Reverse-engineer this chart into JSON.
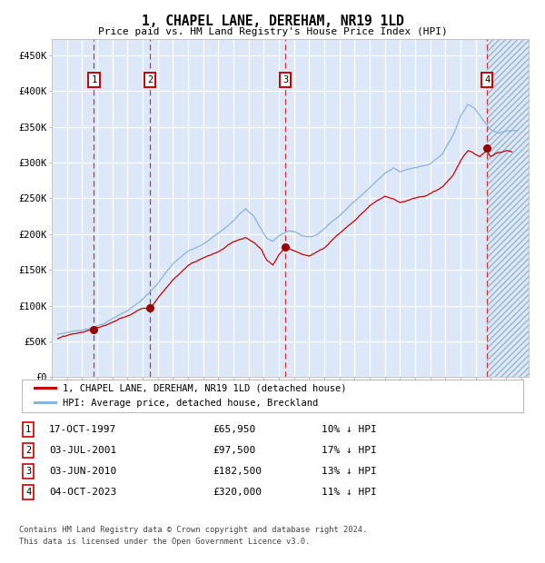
{
  "title": "1, CHAPEL LANE, DEREHAM, NR19 1LD",
  "subtitle": "Price paid vs. HM Land Registry's House Price Index (HPI)",
  "background_color": "#ffffff",
  "plot_bg_color": "#dce8f8",
  "ylabel_vals": [
    0,
    50000,
    100000,
    150000,
    200000,
    250000,
    300000,
    350000,
    400000,
    450000
  ],
  "ylabel_labels": [
    "£0",
    "£50K",
    "£100K",
    "£150K",
    "£200K",
    "£250K",
    "£300K",
    "£350K",
    "£400K",
    "£450K"
  ],
  "ylim": [
    0,
    472000
  ],
  "xlim_start": 1995.0,
  "xlim_end": 2026.5,
  "grid_color": "#ffffff",
  "hpi_line_color": "#8ab4d8",
  "price_line_color": "#cc0000",
  "sale_marker_color": "#990000",
  "dashed_line_color": "#cc2222",
  "last_sale_year": 2023.75,
  "sales": [
    {
      "num": 1,
      "date_str": "17-OCT-1997",
      "year": 1997.79,
      "price": 65950
    },
    {
      "num": 2,
      "date_str": "03-JUL-2001",
      "year": 2001.5,
      "price": 97500
    },
    {
      "num": 3,
      "date_str": "03-JUN-2010",
      "year": 2010.42,
      "price": 182500
    },
    {
      "num": 4,
      "date_str": "04-OCT-2023",
      "year": 2023.75,
      "price": 320000
    }
  ],
  "legend_label_price": "1, CHAPEL LANE, DEREHAM, NR19 1LD (detached house)",
  "legend_label_hpi": "HPI: Average price, detached house, Breckland",
  "footer1": "Contains HM Land Registry data © Crown copyright and database right 2024.",
  "footer2": "This data is licensed under the Open Government Licence v3.0.",
  "table_rows": [
    {
      "num": 1,
      "date": "17-OCT-1997",
      "price": "£65,950",
      "pct": "10% ↓ HPI"
    },
    {
      "num": 2,
      "date": "03-JUL-2001",
      "price": "£97,500",
      "pct": "17% ↓ HPI"
    },
    {
      "num": 3,
      "date": "03-JUN-2010",
      "price": "£182,500",
      "pct": "13% ↓ HPI"
    },
    {
      "num": 4,
      "date": "04-OCT-2023",
      "price": "£320,000",
      "pct": "11% ↓ HPI"
    }
  ]
}
